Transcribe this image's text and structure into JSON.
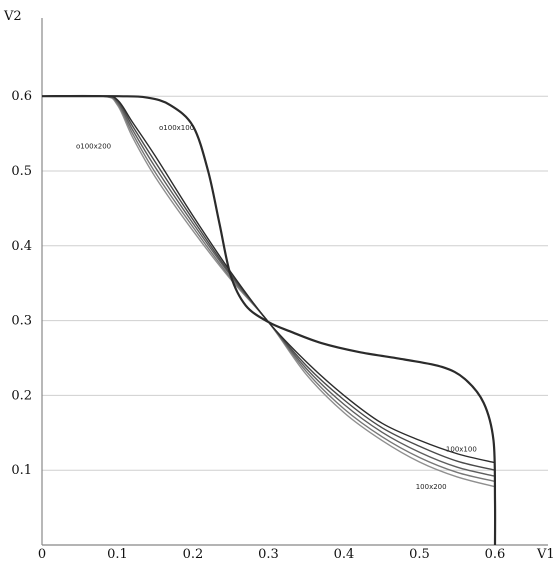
{
  "chart_data": {
    "type": "line",
    "xlabel": "V1",
    "ylabel": "V2",
    "xlim": [
      0,
      0.65
    ],
    "ylim": [
      0,
      0.6
    ],
    "x_ticks": [
      "0",
      "0.1",
      "0.2",
      "0.3",
      "0.4",
      "0.5",
      "0.6"
    ],
    "y_ticks": [
      "0.1",
      "0.2",
      "0.3",
      "0.4",
      "0.5",
      "0.6"
    ],
    "grid": "horizontal",
    "annotations": [
      {
        "text": "o100x200",
        "x": 0.045,
        "y": 0.53
      },
      {
        "text": "o100x100",
        "x": 0.155,
        "y": 0.555
      },
      {
        "text": "100x100",
        "x": 0.535,
        "y": 0.125
      },
      {
        "text": "100x200",
        "x": 0.495,
        "y": 0.075
      }
    ],
    "series": [
      {
        "color": "#2b2b2b",
        "points": [
          [
            0,
            0.6
          ],
          [
            0.1,
            0.6
          ],
          [
            0.14,
            0.598
          ],
          [
            0.17,
            0.588
          ],
          [
            0.2,
            0.56
          ],
          [
            0.22,
            0.5
          ],
          [
            0.235,
            0.43
          ],
          [
            0.25,
            0.36
          ],
          [
            0.27,
            0.32
          ],
          [
            0.3,
            0.298
          ],
          [
            0.33,
            0.285
          ],
          [
            0.37,
            0.27
          ],
          [
            0.42,
            0.258
          ],
          [
            0.48,
            0.248
          ],
          [
            0.53,
            0.238
          ],
          [
            0.56,
            0.222
          ],
          [
            0.585,
            0.19
          ],
          [
            0.598,
            0.14
          ],
          [
            0.6,
            0.06
          ],
          [
            0.6,
            0.0
          ]
        ]
      },
      {
        "color": "#2b2b2b",
        "points": [
          [
            0,
            0.6
          ],
          [
            0.08,
            0.6
          ],
          [
            0.1,
            0.595
          ],
          [
            0.12,
            0.565
          ],
          [
            0.15,
            0.52
          ],
          [
            0.2,
            0.44
          ],
          [
            0.25,
            0.365
          ],
          [
            0.3,
            0.298
          ],
          [
            0.35,
            0.245
          ],
          [
            0.4,
            0.2
          ],
          [
            0.45,
            0.163
          ],
          [
            0.5,
            0.14
          ],
          [
            0.55,
            0.122
          ],
          [
            0.6,
            0.11
          ]
        ]
      },
      {
        "color": "#4a4a4a",
        "points": [
          [
            0,
            0.6
          ],
          [
            0.08,
            0.6
          ],
          [
            0.1,
            0.594
          ],
          [
            0.12,
            0.56
          ],
          [
            0.15,
            0.512
          ],
          [
            0.2,
            0.435
          ],
          [
            0.25,
            0.362
          ],
          [
            0.3,
            0.298
          ],
          [
            0.35,
            0.24
          ],
          [
            0.4,
            0.194
          ],
          [
            0.45,
            0.157
          ],
          [
            0.5,
            0.132
          ],
          [
            0.55,
            0.112
          ],
          [
            0.6,
            0.1
          ]
        ]
      },
      {
        "color": "#5e5e5e",
        "points": [
          [
            0,
            0.6
          ],
          [
            0.08,
            0.6
          ],
          [
            0.1,
            0.592
          ],
          [
            0.12,
            0.555
          ],
          [
            0.15,
            0.505
          ],
          [
            0.2,
            0.43
          ],
          [
            0.25,
            0.36
          ],
          [
            0.3,
            0.298
          ],
          [
            0.35,
            0.236
          ],
          [
            0.4,
            0.188
          ],
          [
            0.45,
            0.151
          ],
          [
            0.5,
            0.124
          ],
          [
            0.55,
            0.104
          ],
          [
            0.6,
            0.092
          ]
        ]
      },
      {
        "color": "#777777",
        "points": [
          [
            0,
            0.6
          ],
          [
            0.08,
            0.6
          ],
          [
            0.1,
            0.59
          ],
          [
            0.12,
            0.55
          ],
          [
            0.15,
            0.498
          ],
          [
            0.2,
            0.425
          ],
          [
            0.25,
            0.357
          ],
          [
            0.3,
            0.298
          ],
          [
            0.35,
            0.232
          ],
          [
            0.4,
            0.182
          ],
          [
            0.45,
            0.145
          ],
          [
            0.5,
            0.117
          ],
          [
            0.55,
            0.097
          ],
          [
            0.6,
            0.085
          ]
        ]
      },
      {
        "color": "#8f8f8f",
        "points": [
          [
            0,
            0.6
          ],
          [
            0.08,
            0.6
          ],
          [
            0.1,
            0.588
          ],
          [
            0.12,
            0.545
          ],
          [
            0.15,
            0.492
          ],
          [
            0.2,
            0.42
          ],
          [
            0.25,
            0.355
          ],
          [
            0.3,
            0.298
          ],
          [
            0.35,
            0.228
          ],
          [
            0.4,
            0.177
          ],
          [
            0.45,
            0.14
          ],
          [
            0.5,
            0.111
          ],
          [
            0.55,
            0.091
          ],
          [
            0.6,
            0.078
          ]
        ]
      }
    ]
  }
}
